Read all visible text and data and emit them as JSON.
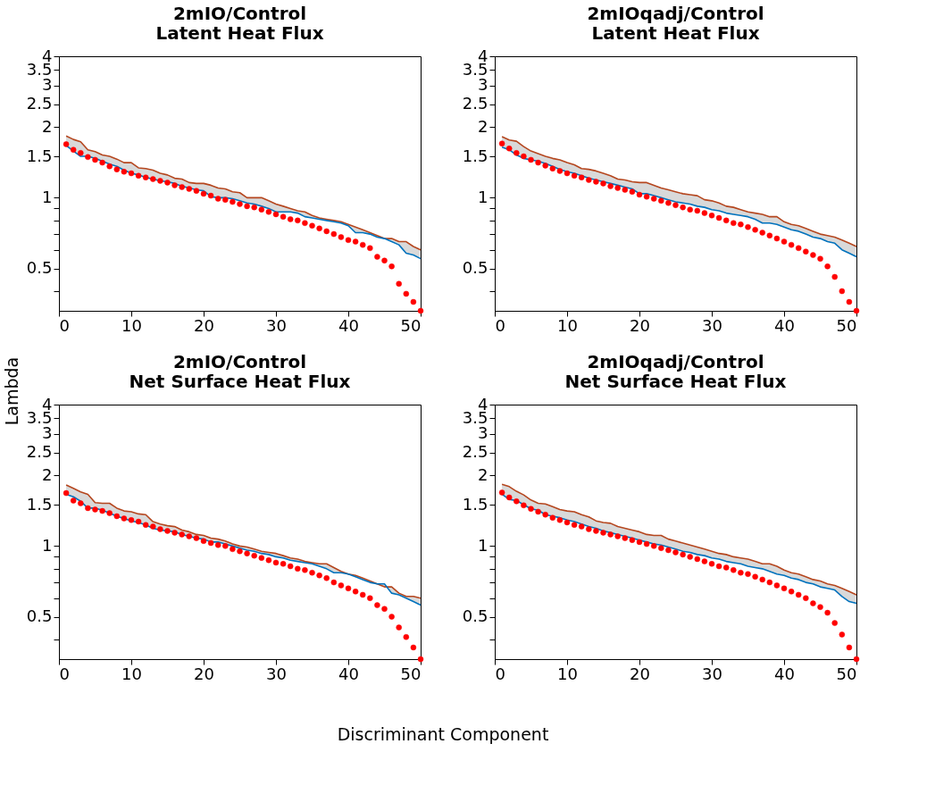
{
  "chart_data": [
    {
      "type": "line",
      "title": "2mIO/Control",
      "subtitle": "Latent Heat Flux",
      "ylabel": "Lambda",
      "log": true,
      "grid": false,
      "xlim": [
        0,
        50
      ],
      "xticks": [
        0,
        10,
        20,
        30,
        40,
        50
      ],
      "ylim": [
        0.33,
        4
      ],
      "yticks": [
        {
          "value": 0.4,
          "label": null
        },
        0.5,
        {
          "value": 0.6,
          "label": null
        },
        {
          "value": 0.7,
          "label": null
        },
        {
          "value": 0.8,
          "label": null
        },
        {
          "value": 0.9,
          "label": null
        },
        1,
        1.5,
        2,
        2.5,
        3,
        3.5,
        4
      ],
      "x": [
        1,
        2,
        3,
        4,
        5,
        6,
        7,
        8,
        9,
        10,
        11,
        12,
        13,
        14,
        15,
        16,
        17,
        18,
        19,
        20,
        21,
        22,
        23,
        24,
        25,
        26,
        27,
        28,
        29,
        30,
        31,
        32,
        33,
        34,
        35,
        36,
        37,
        38,
        39,
        40,
        41,
        42,
        43,
        44,
        45,
        46,
        47,
        48,
        49,
        50
      ],
      "series": [
        {
          "type": "line",
          "color": "#b5461e",
          "values": [
            1.83,
            1.77,
            1.73,
            1.6,
            1.57,
            1.52,
            1.5,
            1.46,
            1.41,
            1.41,
            1.34,
            1.33,
            1.31,
            1.27,
            1.25,
            1.21,
            1.2,
            1.16,
            1.15,
            1.15,
            1.13,
            1.1,
            1.09,
            1.06,
            1.05,
            1.0,
            1.0,
            1.0,
            0.97,
            0.94,
            0.92,
            0.9,
            0.88,
            0.87,
            0.84,
            0.82,
            0.81,
            0.8,
            0.79,
            0.77,
            0.75,
            0.73,
            0.71,
            0.69,
            0.67,
            0.67,
            0.65,
            0.65,
            0.62,
            0.6
          ],
          "lower": [
            1.67,
            1.58,
            1.5,
            1.5,
            1.47,
            1.43,
            1.39,
            1.36,
            1.31,
            1.27,
            1.25,
            1.22,
            1.2,
            1.18,
            1.17,
            1.15,
            1.12,
            1.1,
            1.08,
            1.07,
            1.01,
            1.0,
            1.0,
            0.99,
            0.97,
            0.95,
            0.94,
            0.92,
            0.9,
            0.87,
            0.87,
            0.87,
            0.86,
            0.83,
            0.82,
            0.81,
            0.8,
            0.79,
            0.78,
            0.76,
            0.71,
            0.71,
            0.7,
            0.68,
            0.67,
            0.65,
            0.63,
            0.58,
            0.57,
            0.55
          ],
          "upper": [
            1.83,
            1.77,
            1.73,
            1.6,
            1.57,
            1.52,
            1.5,
            1.46,
            1.41,
            1.41,
            1.34,
            1.33,
            1.31,
            1.27,
            1.25,
            1.21,
            1.2,
            1.16,
            1.15,
            1.15,
            1.13,
            1.1,
            1.09,
            1.06,
            1.05,
            1.0,
            1.0,
            1.0,
            0.97,
            0.94,
            0.92,
            0.9,
            0.88,
            0.87,
            0.84,
            0.82,
            0.81,
            0.8,
            0.79,
            0.77,
            0.75,
            0.73,
            0.71,
            0.69,
            0.67,
            0.67,
            0.65,
            0.65,
            0.62,
            0.6
          ]
        },
        {
          "type": "line",
          "color": "#0072bd",
          "values": [
            1.67,
            1.58,
            1.5,
            1.5,
            1.47,
            1.43,
            1.39,
            1.36,
            1.31,
            1.27,
            1.25,
            1.22,
            1.2,
            1.18,
            1.17,
            1.15,
            1.12,
            1.1,
            1.08,
            1.07,
            1.01,
            1.0,
            1.0,
            0.99,
            0.97,
            0.95,
            0.94,
            0.92,
            0.9,
            0.87,
            0.87,
            0.87,
            0.86,
            0.83,
            0.82,
            0.81,
            0.8,
            0.79,
            0.78,
            0.76,
            0.71,
            0.71,
            0.7,
            0.68,
            0.67,
            0.65,
            0.63,
            0.58,
            0.57,
            0.55
          ]
        },
        {
          "type": "scatter",
          "marker": "circle",
          "color": "#ff0000",
          "values": [
            1.69,
            1.6,
            1.55,
            1.49,
            1.45,
            1.41,
            1.36,
            1.32,
            1.29,
            1.27,
            1.24,
            1.22,
            1.2,
            1.18,
            1.16,
            1.13,
            1.11,
            1.09,
            1.07,
            1.04,
            1.02,
            0.99,
            0.98,
            0.96,
            0.94,
            0.92,
            0.91,
            0.89,
            0.87,
            0.85,
            0.83,
            0.81,
            0.8,
            0.78,
            0.76,
            0.74,
            0.72,
            0.7,
            0.68,
            0.66,
            0.65,
            0.63,
            0.61,
            0.56,
            0.54,
            0.51,
            0.43,
            0.39,
            0.36,
            0.33
          ]
        }
      ]
    },
    {
      "type": "line",
      "title": "2mIOqadj/Control",
      "subtitle": "Latent Heat Flux",
      "log": true,
      "grid": false,
      "xlim": [
        0,
        50
      ],
      "xticks": [
        0,
        10,
        20,
        30,
        40,
        50
      ],
      "ylim": [
        0.33,
        4
      ],
      "yticks": [
        {
          "value": 0.4,
          "label": null
        },
        0.5,
        {
          "value": 0.6,
          "label": null
        },
        {
          "value": 0.7,
          "label": null
        },
        {
          "value": 0.8,
          "label": null
        },
        {
          "value": 0.9,
          "label": null
        },
        1,
        1.5,
        2,
        2.5,
        3,
        3.5,
        4
      ],
      "x": [
        1,
        2,
        3,
        4,
        5,
        6,
        7,
        8,
        9,
        10,
        11,
        12,
        13,
        14,
        15,
        16,
        17,
        18,
        19,
        20,
        21,
        22,
        23,
        24,
        25,
        26,
        27,
        28,
        29,
        30,
        31,
        32,
        33,
        34,
        35,
        36,
        37,
        38,
        39,
        40,
        41,
        42,
        43,
        44,
        45,
        46,
        47,
        48,
        49,
        50
      ],
      "series": [
        {
          "type": "line",
          "color": "#b5461e",
          "values": [
            1.82,
            1.76,
            1.74,
            1.65,
            1.58,
            1.54,
            1.5,
            1.47,
            1.45,
            1.41,
            1.38,
            1.33,
            1.32,
            1.3,
            1.27,
            1.24,
            1.2,
            1.19,
            1.17,
            1.16,
            1.16,
            1.13,
            1.1,
            1.08,
            1.06,
            1.04,
            1.03,
            1.02,
            0.98,
            0.97,
            0.95,
            0.92,
            0.91,
            0.89,
            0.87,
            0.86,
            0.85,
            0.83,
            0.83,
            0.79,
            0.77,
            0.76,
            0.74,
            0.72,
            0.7,
            0.69,
            0.68,
            0.66,
            0.64,
            0.62
          ],
          "lower": [
            1.64,
            1.6,
            1.52,
            1.47,
            1.45,
            1.43,
            1.4,
            1.36,
            1.32,
            1.29,
            1.27,
            1.24,
            1.21,
            1.19,
            1.17,
            1.15,
            1.13,
            1.11,
            1.09,
            1.04,
            1.04,
            1.02,
            1.0,
            0.98,
            0.96,
            0.95,
            0.94,
            0.92,
            0.91,
            0.89,
            0.88,
            0.86,
            0.85,
            0.84,
            0.83,
            0.81,
            0.78,
            0.78,
            0.77,
            0.75,
            0.73,
            0.72,
            0.7,
            0.68,
            0.67,
            0.65,
            0.64,
            0.6,
            0.58,
            0.56
          ],
          "upper": [
            1.82,
            1.76,
            1.74,
            1.65,
            1.58,
            1.54,
            1.5,
            1.47,
            1.45,
            1.41,
            1.38,
            1.33,
            1.32,
            1.3,
            1.27,
            1.24,
            1.2,
            1.19,
            1.17,
            1.16,
            1.16,
            1.13,
            1.1,
            1.08,
            1.06,
            1.04,
            1.03,
            1.02,
            0.98,
            0.97,
            0.95,
            0.92,
            0.91,
            0.89,
            0.87,
            0.86,
            0.85,
            0.83,
            0.83,
            0.79,
            0.77,
            0.76,
            0.74,
            0.72,
            0.7,
            0.69,
            0.68,
            0.66,
            0.64,
            0.62
          ]
        },
        {
          "type": "line",
          "color": "#0072bd",
          "values": [
            1.64,
            1.6,
            1.52,
            1.47,
            1.45,
            1.43,
            1.4,
            1.36,
            1.32,
            1.29,
            1.27,
            1.24,
            1.21,
            1.19,
            1.17,
            1.15,
            1.13,
            1.11,
            1.09,
            1.04,
            1.04,
            1.02,
            1.0,
            0.98,
            0.96,
            0.95,
            0.94,
            0.92,
            0.91,
            0.89,
            0.88,
            0.86,
            0.85,
            0.84,
            0.83,
            0.81,
            0.78,
            0.78,
            0.77,
            0.75,
            0.73,
            0.72,
            0.7,
            0.68,
            0.67,
            0.65,
            0.64,
            0.6,
            0.58,
            0.56
          ]
        },
        {
          "type": "scatter",
          "marker": "circle",
          "color": "#ff0000",
          "values": [
            1.7,
            1.62,
            1.55,
            1.5,
            1.45,
            1.41,
            1.37,
            1.33,
            1.3,
            1.27,
            1.24,
            1.22,
            1.19,
            1.17,
            1.15,
            1.12,
            1.1,
            1.08,
            1.06,
            1.03,
            1.01,
            0.99,
            0.97,
            0.95,
            0.93,
            0.91,
            0.89,
            0.88,
            0.86,
            0.84,
            0.82,
            0.8,
            0.78,
            0.77,
            0.75,
            0.73,
            0.71,
            0.69,
            0.67,
            0.65,
            0.63,
            0.61,
            0.59,
            0.57,
            0.55,
            0.51,
            0.46,
            0.4,
            0.36,
            0.33
          ]
        }
      ]
    },
    {
      "type": "line",
      "title": "2mIO/Control",
      "subtitle": "Net Surface Heat Flux",
      "xlabel": "Discriminant Component",
      "log": true,
      "grid": false,
      "xlim": [
        0,
        50
      ],
      "xticks": [
        0,
        10,
        20,
        30,
        40,
        50
      ],
      "ylim": [
        0.33,
        4
      ],
      "yticks": [
        {
          "value": 0.4,
          "label": null
        },
        0.5,
        {
          "value": 0.6,
          "label": null
        },
        {
          "value": 0.7,
          "label": null
        },
        {
          "value": 0.8,
          "label": null
        },
        {
          "value": 0.9,
          "label": null
        },
        1,
        1.5,
        2,
        2.5,
        3,
        3.5,
        4
      ],
      "x": [
        1,
        2,
        3,
        4,
        5,
        6,
        7,
        8,
        9,
        10,
        11,
        12,
        13,
        14,
        15,
        16,
        17,
        18,
        19,
        20,
        21,
        22,
        23,
        24,
        25,
        26,
        27,
        28,
        29,
        30,
        31,
        32,
        33,
        34,
        35,
        36,
        37,
        38,
        39,
        40,
        41,
        42,
        43,
        44,
        45,
        46,
        47,
        48,
        49,
        50
      ],
      "series": [
        {
          "type": "line",
          "color": "#b5461e",
          "values": [
            1.82,
            1.76,
            1.7,
            1.66,
            1.53,
            1.52,
            1.52,
            1.45,
            1.41,
            1.4,
            1.37,
            1.36,
            1.27,
            1.24,
            1.22,
            1.21,
            1.17,
            1.15,
            1.12,
            1.11,
            1.08,
            1.07,
            1.05,
            1.02,
            1.0,
            0.99,
            0.97,
            0.95,
            0.94,
            0.93,
            0.91,
            0.89,
            0.88,
            0.86,
            0.85,
            0.84,
            0.84,
            0.81,
            0.78,
            0.76,
            0.75,
            0.73,
            0.71,
            0.69,
            0.67,
            0.67,
            0.63,
            0.61,
            0.61,
            0.6
          ],
          "lower": [
            1.66,
            1.62,
            1.55,
            1.45,
            1.45,
            1.42,
            1.38,
            1.34,
            1.31,
            1.28,
            1.26,
            1.23,
            1.19,
            1.17,
            1.16,
            1.15,
            1.12,
            1.1,
            1.08,
            1.07,
            1.04,
            1.04,
            1.02,
            1.0,
            0.98,
            0.96,
            0.95,
            0.93,
            0.92,
            0.9,
            0.89,
            0.87,
            0.86,
            0.85,
            0.84,
            0.82,
            0.8,
            0.77,
            0.77,
            0.76,
            0.74,
            0.72,
            0.7,
            0.69,
            0.69,
            0.63,
            0.62,
            0.6,
            0.58,
            0.56
          ],
          "upper": [
            1.82,
            1.76,
            1.7,
            1.66,
            1.53,
            1.52,
            1.52,
            1.45,
            1.41,
            1.4,
            1.37,
            1.36,
            1.27,
            1.24,
            1.22,
            1.21,
            1.17,
            1.15,
            1.12,
            1.11,
            1.08,
            1.07,
            1.05,
            1.02,
            1.0,
            0.99,
            0.97,
            0.95,
            0.94,
            0.93,
            0.91,
            0.89,
            0.88,
            0.86,
            0.85,
            0.84,
            0.84,
            0.81,
            0.78,
            0.76,
            0.75,
            0.73,
            0.71,
            0.69,
            0.67,
            0.67,
            0.63,
            0.61,
            0.61,
            0.6
          ]
        },
        {
          "type": "line",
          "color": "#0072bd",
          "values": [
            1.66,
            1.62,
            1.55,
            1.45,
            1.45,
            1.42,
            1.38,
            1.34,
            1.31,
            1.28,
            1.26,
            1.23,
            1.19,
            1.17,
            1.16,
            1.15,
            1.12,
            1.1,
            1.08,
            1.07,
            1.04,
            1.04,
            1.02,
            1.0,
            0.98,
            0.96,
            0.95,
            0.93,
            0.92,
            0.9,
            0.89,
            0.87,
            0.86,
            0.85,
            0.84,
            0.82,
            0.8,
            0.77,
            0.77,
            0.76,
            0.74,
            0.72,
            0.7,
            0.69,
            0.69,
            0.63,
            0.62,
            0.6,
            0.58,
            0.56
          ]
        },
        {
          "type": "scatter",
          "marker": "circle",
          "color": "#ff0000",
          "values": [
            1.68,
            1.56,
            1.52,
            1.45,
            1.43,
            1.41,
            1.38,
            1.34,
            1.31,
            1.29,
            1.27,
            1.23,
            1.21,
            1.18,
            1.16,
            1.14,
            1.12,
            1.1,
            1.08,
            1.05,
            1.03,
            1.01,
            1.0,
            0.97,
            0.95,
            0.93,
            0.91,
            0.89,
            0.87,
            0.85,
            0.84,
            0.82,
            0.8,
            0.79,
            0.77,
            0.75,
            0.73,
            0.7,
            0.68,
            0.66,
            0.64,
            0.62,
            0.6,
            0.56,
            0.54,
            0.5,
            0.45,
            0.41,
            0.37,
            0.33
          ]
        }
      ]
    },
    {
      "type": "line",
      "title": "2mIOqadj/Control",
      "subtitle": "Net Surface Heat Flux",
      "log": true,
      "grid": false,
      "xlim": [
        0,
        50
      ],
      "xticks": [
        0,
        10,
        20,
        30,
        40,
        50
      ],
      "ylim": [
        0.33,
        4
      ],
      "yticks": [
        {
          "value": 0.4,
          "label": null
        },
        0.5,
        {
          "value": 0.6,
          "label": null
        },
        {
          "value": 0.7,
          "label": null
        },
        {
          "value": 0.8,
          "label": null
        },
        {
          "value": 0.9,
          "label": null
        },
        1,
        1.5,
        2,
        2.5,
        3,
        3.5,
        4
      ],
      "x": [
        1,
        2,
        3,
        4,
        5,
        6,
        7,
        8,
        9,
        10,
        11,
        12,
        13,
        14,
        15,
        16,
        17,
        18,
        19,
        20,
        21,
        22,
        23,
        24,
        25,
        26,
        27,
        28,
        29,
        30,
        31,
        32,
        33,
        34,
        35,
        36,
        37,
        38,
        39,
        40,
        41,
        42,
        43,
        44,
        45,
        46,
        47,
        48,
        49,
        50
      ],
      "series": [
        {
          "type": "line",
          "color": "#b5461e",
          "values": [
            1.83,
            1.79,
            1.71,
            1.65,
            1.57,
            1.52,
            1.51,
            1.47,
            1.43,
            1.41,
            1.4,
            1.36,
            1.33,
            1.28,
            1.26,
            1.25,
            1.21,
            1.19,
            1.17,
            1.15,
            1.12,
            1.11,
            1.11,
            1.07,
            1.05,
            1.03,
            1.01,
            0.99,
            0.97,
            0.95,
            0.93,
            0.92,
            0.9,
            0.89,
            0.88,
            0.86,
            0.84,
            0.84,
            0.82,
            0.79,
            0.77,
            0.76,
            0.74,
            0.72,
            0.71,
            0.69,
            0.68,
            0.66,
            0.64,
            0.62
          ],
          "lower": [
            1.66,
            1.58,
            1.56,
            1.5,
            1.44,
            1.42,
            1.36,
            1.34,
            1.32,
            1.29,
            1.27,
            1.24,
            1.21,
            1.19,
            1.16,
            1.14,
            1.12,
            1.1,
            1.08,
            1.06,
            1.04,
            1.02,
            1.01,
            0.99,
            0.97,
            0.95,
            0.94,
            0.92,
            0.91,
            0.89,
            0.88,
            0.86,
            0.85,
            0.84,
            0.82,
            0.81,
            0.8,
            0.78,
            0.76,
            0.75,
            0.73,
            0.72,
            0.7,
            0.69,
            0.67,
            0.66,
            0.65,
            0.61,
            0.58,
            0.57
          ],
          "upper": [
            1.83,
            1.79,
            1.71,
            1.65,
            1.57,
            1.52,
            1.51,
            1.47,
            1.43,
            1.41,
            1.4,
            1.36,
            1.33,
            1.28,
            1.26,
            1.25,
            1.21,
            1.19,
            1.17,
            1.15,
            1.12,
            1.11,
            1.11,
            1.07,
            1.05,
            1.03,
            1.01,
            0.99,
            0.97,
            0.95,
            0.93,
            0.92,
            0.9,
            0.89,
            0.88,
            0.86,
            0.84,
            0.84,
            0.82,
            0.79,
            0.77,
            0.76,
            0.74,
            0.72,
            0.71,
            0.69,
            0.68,
            0.66,
            0.64,
            0.62
          ]
        },
        {
          "type": "line",
          "color": "#0072bd",
          "values": [
            1.66,
            1.58,
            1.56,
            1.5,
            1.44,
            1.42,
            1.36,
            1.34,
            1.32,
            1.29,
            1.27,
            1.24,
            1.21,
            1.19,
            1.16,
            1.14,
            1.12,
            1.1,
            1.08,
            1.06,
            1.04,
            1.02,
            1.01,
            0.99,
            0.97,
            0.95,
            0.94,
            0.92,
            0.91,
            0.89,
            0.88,
            0.86,
            0.85,
            0.84,
            0.82,
            0.81,
            0.8,
            0.78,
            0.76,
            0.75,
            0.73,
            0.72,
            0.7,
            0.69,
            0.67,
            0.66,
            0.65,
            0.61,
            0.58,
            0.57
          ]
        },
        {
          "type": "scatter",
          "marker": "circle",
          "color": "#ff0000",
          "values": [
            1.69,
            1.61,
            1.55,
            1.49,
            1.44,
            1.4,
            1.36,
            1.32,
            1.29,
            1.26,
            1.23,
            1.21,
            1.18,
            1.16,
            1.14,
            1.12,
            1.1,
            1.08,
            1.06,
            1.04,
            1.02,
            1.0,
            0.98,
            0.96,
            0.94,
            0.92,
            0.9,
            0.88,
            0.86,
            0.84,
            0.82,
            0.81,
            0.79,
            0.77,
            0.76,
            0.74,
            0.72,
            0.7,
            0.68,
            0.66,
            0.64,
            0.62,
            0.6,
            0.57,
            0.55,
            0.52,
            0.47,
            0.42,
            0.37,
            0.33
          ]
        }
      ]
    }
  ]
}
